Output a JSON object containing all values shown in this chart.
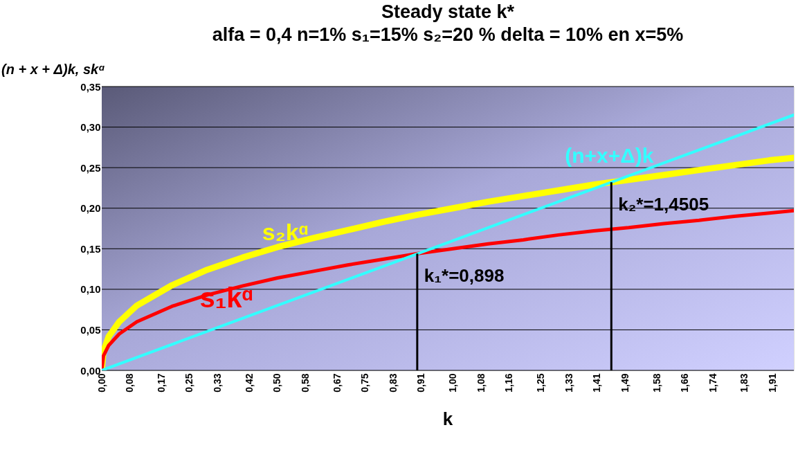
{
  "chart_data": {
    "type": "line",
    "title": "Steady state k*",
    "subtitle": "alfa = 0,4  n=1%  s₁=15%  s₂=20 % delta = 10% en x=5%",
    "xlabel": "k",
    "ylabel": "(n + x + Δ)k, skᵅ",
    "x": [
      0,
      0.005,
      0.02,
      0.05,
      0.1,
      0.2,
      0.3,
      0.4,
      0.5,
      0.6,
      0.7,
      0.8,
      0.9,
      1.0,
      1.1,
      1.2,
      1.3,
      1.4,
      1.5,
      1.6,
      1.7,
      1.8,
      1.9,
      1.97
    ],
    "series": [
      {
        "name": "s₂kᵅ",
        "color": "#ffff00",
        "values": [
          0,
          0.024,
          0.042,
          0.06,
          0.08,
          0.105,
          0.124,
          0.139,
          0.152,
          0.163,
          0.173,
          0.183,
          0.192,
          0.2,
          0.208,
          0.215,
          0.222,
          0.229,
          0.235,
          0.241,
          0.247,
          0.253,
          0.259,
          0.262
        ]
      },
      {
        "name": "s₁kᵅ",
        "color": "#ff0000",
        "values": [
          0,
          0.018,
          0.031,
          0.045,
          0.06,
          0.079,
          0.093,
          0.104,
          0.114,
          0.122,
          0.13,
          0.137,
          0.144,
          0.15,
          0.156,
          0.161,
          0.167,
          0.172,
          0.176,
          0.181,
          0.185,
          0.19,
          0.194,
          0.197
        ]
      },
      {
        "name": "(n+x+Δ)k",
        "color": "#33ffff",
        "x": [
          0,
          1.0,
          1.97
        ],
        "values": [
          0,
          0.16,
          0.315
        ]
      }
    ],
    "annotations": [
      {
        "text": "k₁*=0,898",
        "x": 0.898,
        "y": 0.144
      },
      {
        "text": "k₂*=1,4505",
        "x": 1.4505,
        "y": 0.232
      }
    ],
    "xlim": [
      0,
      1.97
    ],
    "xticks": [
      {
        "value": 0,
        "label": "0,00"
      },
      {
        "value": 0.08,
        "label": "0,08"
      },
      {
        "value": 0.17,
        "label": "0,17"
      },
      {
        "value": 0.25,
        "label": "0,25"
      },
      {
        "value": 0.33,
        "label": "0,33"
      },
      {
        "value": 0.42,
        "label": "0,42"
      },
      {
        "value": 0.5,
        "label": "0,50"
      },
      {
        "value": 0.58,
        "label": "0,58"
      },
      {
        "value": 0.67,
        "label": "0,67"
      },
      {
        "value": 0.75,
        "label": "0,75"
      },
      {
        "value": 0.83,
        "label": "0,83"
      },
      {
        "value": 0.91,
        "label": "0,91"
      },
      {
        "value": 1.0,
        "label": "1,00"
      },
      {
        "value": 1.08,
        "label": "1,08"
      },
      {
        "value": 1.16,
        "label": "1,16"
      },
      {
        "value": 1.25,
        "label": "1,25"
      },
      {
        "value": 1.33,
        "label": "1,33"
      },
      {
        "value": 1.41,
        "label": "1,41"
      },
      {
        "value": 1.49,
        "label": "1,49"
      },
      {
        "value": 1.58,
        "label": "1,58"
      },
      {
        "value": 1.66,
        "label": "1,66"
      },
      {
        "value": 1.74,
        "label": "1,74"
      },
      {
        "value": 1.83,
        "label": "1,83"
      },
      {
        "value": 1.91,
        "label": "1,91"
      }
    ],
    "ylim": [
      0,
      0.35
    ],
    "yticks": [
      {
        "value": 0,
        "label": "0,00"
      },
      {
        "value": 0.05,
        "label": "0,05"
      },
      {
        "value": 0.1,
        "label": "0,10"
      },
      {
        "value": 0.15,
        "label": "0,15"
      },
      {
        "value": 0.2,
        "label": "0,20"
      },
      {
        "value": 0.25,
        "label": "0,25"
      },
      {
        "value": 0.3,
        "label": "0,30"
      },
      {
        "value": 0.35,
        "label": "0,35"
      }
    ],
    "grid": "y",
    "marker": "none",
    "line_style": "solid"
  }
}
